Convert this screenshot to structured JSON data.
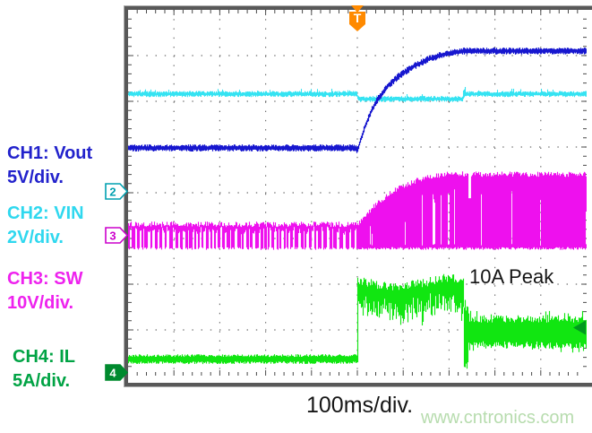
{
  "page": {
    "background": "#ffffff"
  },
  "channel_labels": [
    {
      "line1": "CH1: Vout",
      "line2": "5V/div.",
      "color": "#2222cc"
    },
    {
      "line1": "CH2: VIN",
      "line2": "2V/div.",
      "color": "#2fd8ef"
    },
    {
      "line1": "CH3: SW",
      "line2": "10V/div.",
      "color": "#ee22ee"
    },
    {
      "line1": "CH4: IL",
      "line2": "5A/div.",
      "color": "#00a344"
    }
  ],
  "annotations": {
    "peak_label": "10A Peak"
  },
  "timebase": {
    "label": "100ms/div."
  },
  "watermark": {
    "text": "www.cntronics.com",
    "color": "#b7dcae"
  },
  "scope": {
    "frame_color": "#585858",
    "grid_dot_color": "#6e6e6e",
    "edge_tick_color": "#4a4a4a",
    "trigger_marker": {
      "symbol": "T",
      "color": "#ff8a00",
      "x_div": 5
    },
    "left_markers": [
      {
        "label": "2",
        "color": "#00a0b0",
        "y_div": 3.96,
        "filled": false
      },
      {
        "label": "3",
        "color": "#cc00cc",
        "y_div": 4.92,
        "filled": false
      },
      {
        "label": "4",
        "color": "#008a2e",
        "y_div": 7.92,
        "filled": true
      }
    ],
    "right_marker": {
      "color": "#009a1e",
      "y_div": 6.95
    }
  },
  "chart_data": {
    "type": "line",
    "title": "",
    "x_axis": {
      "label": "100ms/div.",
      "divisions": 10,
      "trigger_at_div": 5
    },
    "y_axis": {
      "divisions": 8
    },
    "series": [
      {
        "name": "CH1 Vout",
        "scale": "5V/div",
        "color": "#1717cf",
        "kind": "line",
        "points_div": [
          [
            0,
            3.02
          ],
          [
            4.97,
            3.02
          ],
          [
            5.0,
            3.08
          ],
          [
            5.08,
            2.82
          ],
          [
            5.18,
            2.52
          ],
          [
            5.3,
            2.22
          ],
          [
            5.45,
            1.95
          ],
          [
            5.65,
            1.68
          ],
          [
            5.9,
            1.45
          ],
          [
            6.2,
            1.25
          ],
          [
            6.55,
            1.08
          ],
          [
            6.9,
            0.97
          ],
          [
            7.3,
            0.9
          ],
          [
            10,
            0.9
          ]
        ]
      },
      {
        "name": "CH2 VIN",
        "scale": "2V/div",
        "color": "#35e3f2",
        "kind": "line",
        "points_div": [
          [
            0,
            1.84
          ],
          [
            4.99,
            1.84
          ],
          [
            5.03,
            1.95
          ],
          [
            7.3,
            1.95
          ],
          [
            7.36,
            1.84
          ],
          [
            10,
            1.84
          ]
        ],
        "recovery_blip_at_div": 7.33
      },
      {
        "name": "CH3 SW",
        "scale": "10V/div",
        "color": "#ee10ee",
        "kind": "band",
        "top_points_div": [
          [
            0,
            4.69
          ],
          [
            5.0,
            4.69
          ],
          [
            5.3,
            4.36
          ],
          [
            5.6,
            4.1
          ],
          [
            5.9,
            3.9
          ],
          [
            6.3,
            3.73
          ],
          [
            6.7,
            3.63
          ],
          [
            7.05,
            3.59
          ],
          [
            10,
            3.6
          ]
        ],
        "bottom_div": 5.22,
        "sparse_pulses_before_div": 5,
        "dropout_at_div": 7.45,
        "dropout_bottom_div": 4.12
      },
      {
        "name": "CH4 IL",
        "scale": "5A/div",
        "color": "#11e611",
        "kind": "band",
        "baseline_div": 7.63,
        "step_at_div": 5,
        "high_top_points_div": [
          [
            5.0,
            5.92
          ],
          [
            5.35,
            6.02
          ],
          [
            5.7,
            6.06
          ],
          [
            6.1,
            6.04
          ],
          [
            6.5,
            5.98
          ],
          [
            6.9,
            5.87
          ],
          [
            7.33,
            5.9
          ]
        ],
        "high_thickness_div": 0.5,
        "fall_at_div": 7.36,
        "settle_top_div": 6.76,
        "settle_bottom_div": 7.33,
        "peak_value": "10A Peak"
      }
    ]
  }
}
